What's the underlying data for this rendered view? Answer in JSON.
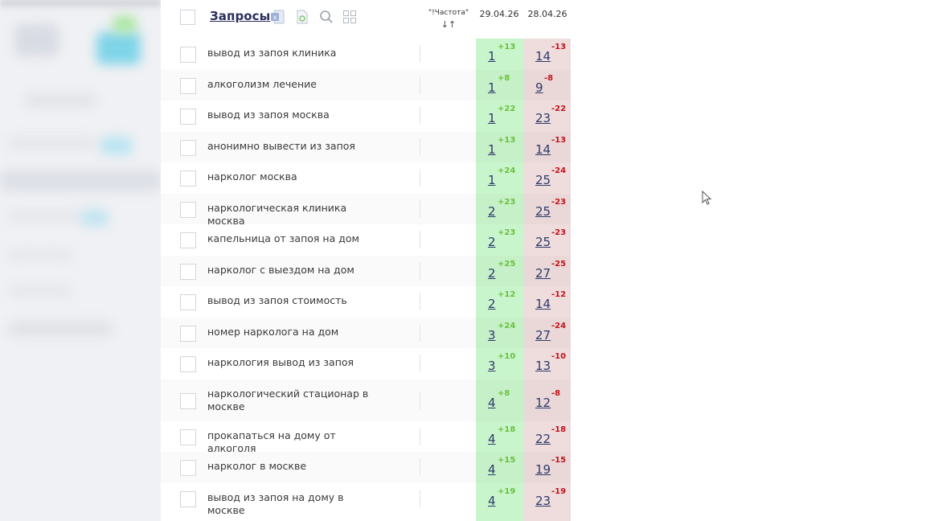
{
  "header": {
    "title": "Запросы",
    "icons": [
      "excel-export-icon",
      "file-export-icon",
      "search-icon",
      "grid-view-icon"
    ],
    "freq_label": "\"!Частота\"",
    "sort_label": "↓↑",
    "date1": "29.04.26",
    "date2": "28.04.26"
  },
  "colors": {
    "green_col": "#c9f5cd",
    "red_col": "#efdcdc",
    "green_delta": "#6cc03a",
    "red_delta": "#c2141c",
    "link": "#2d3a6b"
  },
  "rows": [
    {
      "query": "вывод из запоя клиника",
      "pos1": "1",
      "d1": "+13",
      "pos2": "14",
      "d2": "-13"
    },
    {
      "query": "алкоголизм лечение",
      "pos1": "1",
      "d1": "+8",
      "pos2": "9",
      "d2": "-8"
    },
    {
      "query": "вывод из запоя москва",
      "pos1": "1",
      "d1": "+22",
      "pos2": "23",
      "d2": "-22"
    },
    {
      "query": "анонимно вывести из запоя",
      "pos1": "1",
      "d1": "+13",
      "pos2": "14",
      "d2": "-13"
    },
    {
      "query": "нарколог москва",
      "pos1": "1",
      "d1": "+24",
      "pos2": "25",
      "d2": "-24"
    },
    {
      "query": "наркологическая клиника москва",
      "pos1": "2",
      "d1": "+23",
      "pos2": "25",
      "d2": "-23"
    },
    {
      "query": "капельница от запоя на дом",
      "pos1": "2",
      "d1": "+23",
      "pos2": "25",
      "d2": "-23"
    },
    {
      "query": "нарколог с выездом на дом",
      "pos1": "2",
      "d1": "+25",
      "pos2": "27",
      "d2": "-25"
    },
    {
      "query": "вывод из запоя стоимость",
      "pos1": "2",
      "d1": "+12",
      "pos2": "14",
      "d2": "-12"
    },
    {
      "query": "номер нарколога на дом",
      "pos1": "3",
      "d1": "+24",
      "pos2": "27",
      "d2": "-24"
    },
    {
      "query": "наркология вывод из запоя",
      "pos1": "3",
      "d1": "+10",
      "pos2": "13",
      "d2": "-10"
    },
    {
      "query": "наркологический стационар в москве",
      "pos1": "4",
      "d1": "+8",
      "pos2": "12",
      "d2": "-8",
      "tall": true
    },
    {
      "query": "прокапаться на дому от алкоголя",
      "pos1": "4",
      "d1": "+18",
      "pos2": "22",
      "d2": "-18"
    },
    {
      "query": "нарколог в москве",
      "pos1": "4",
      "d1": "+15",
      "pos2": "19",
      "d2": "-15"
    },
    {
      "query": "вывод из запоя на дому в москве",
      "pos1": "4",
      "d1": "+19",
      "pos2": "23",
      "d2": "-19"
    }
  ]
}
